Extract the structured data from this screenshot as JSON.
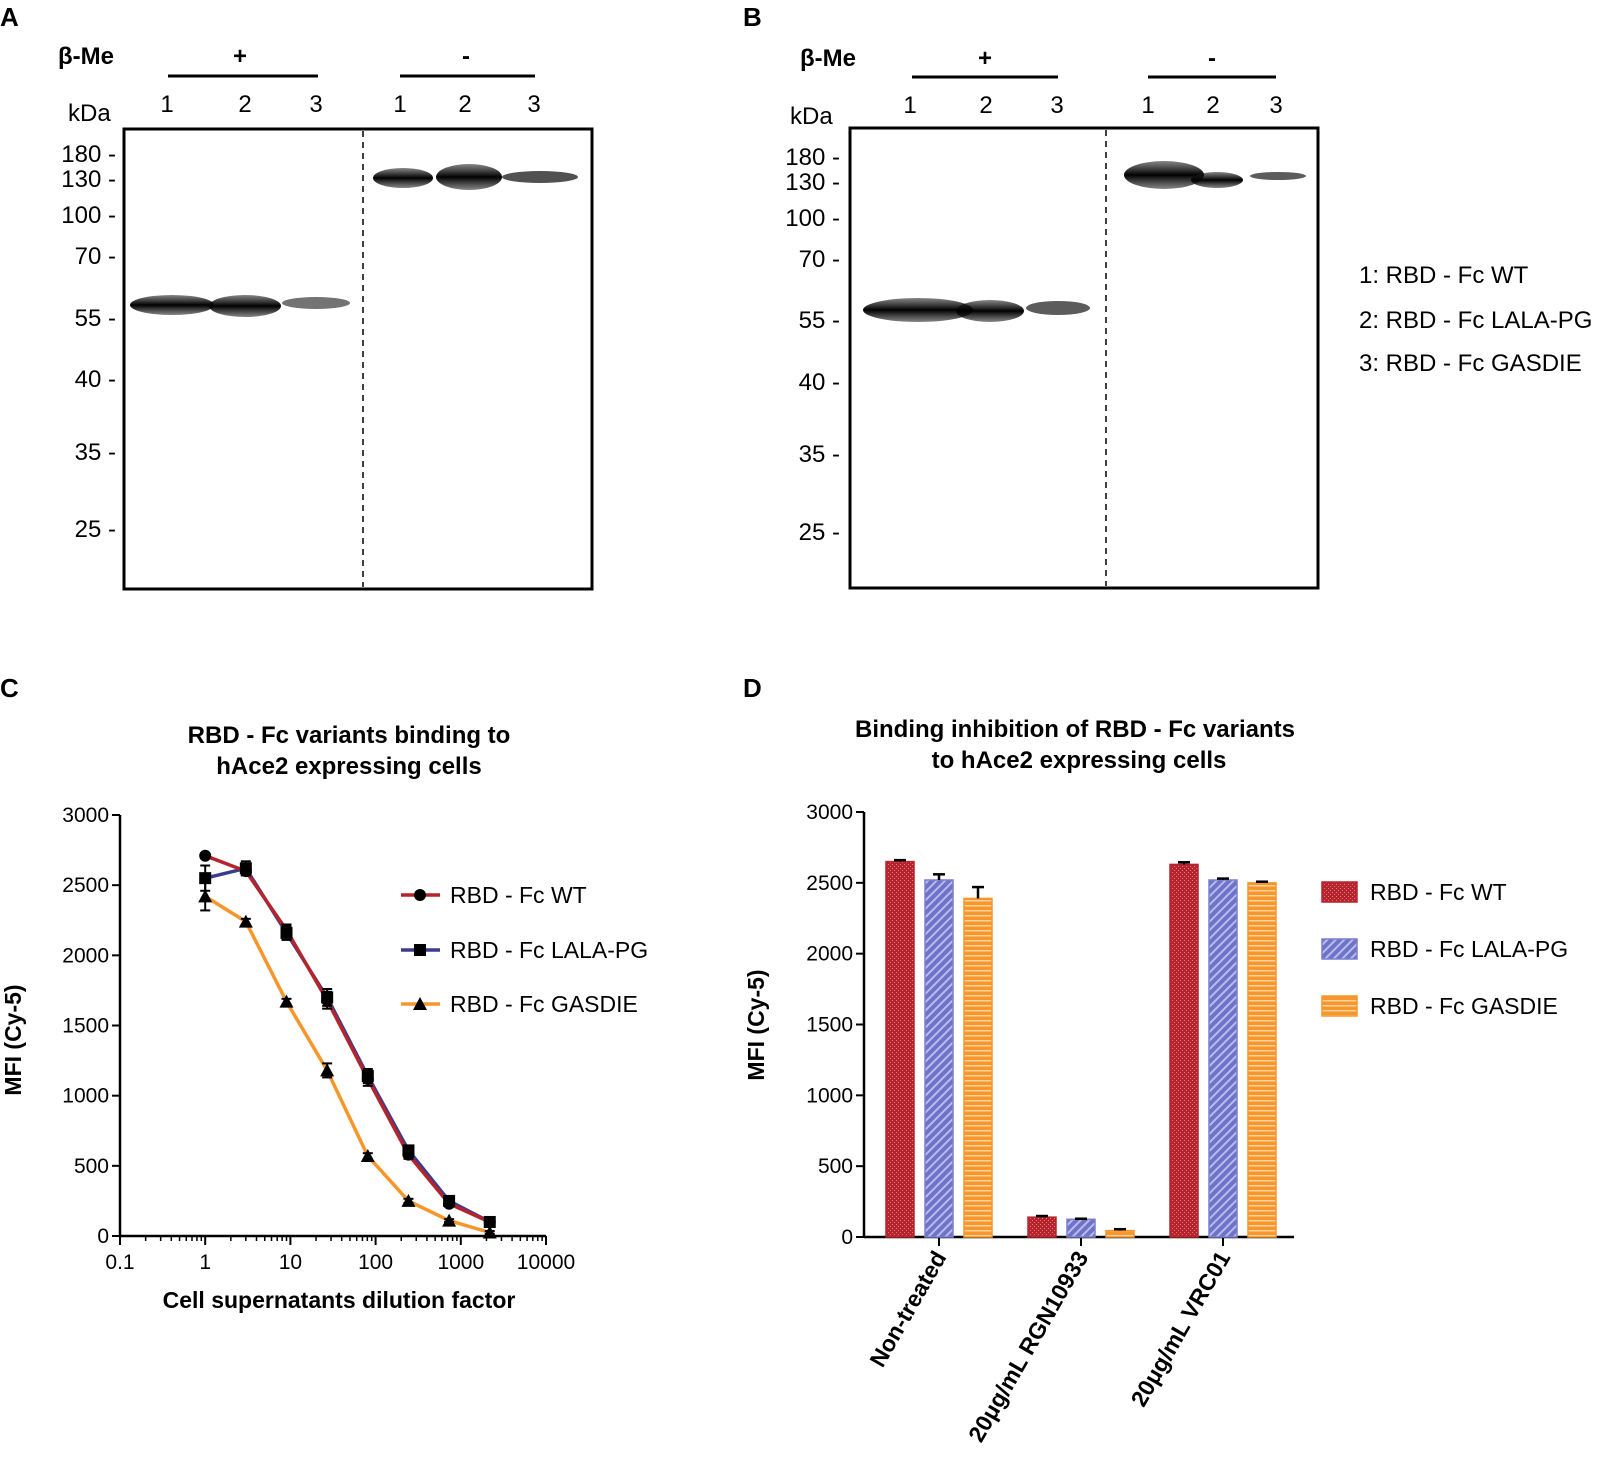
{
  "panel_a": {
    "letter": "A",
    "bme_label": "β-Me",
    "kda_label": "kDa",
    "plus_label": "+",
    "minus_label": "-",
    "lanes": [
      "1",
      "2",
      "3",
      "1",
      "2",
      "3"
    ],
    "markers": [
      "180 -",
      "130 -",
      "100 -",
      "70 -",
      "55 -",
      "40 -",
      "35 -",
      "25 -"
    ]
  },
  "panel_b": {
    "letter": "B",
    "bme_label": "β-Me",
    "kda_label": "kDa",
    "plus_label": "+",
    "minus_label": "-",
    "lanes": [
      "1",
      "2",
      "3",
      "1",
      "2",
      "3"
    ],
    "markers": [
      "180 -",
      "130 -",
      "100 -",
      "70 -",
      "55 -",
      "40 -",
      "35 -",
      "25 -"
    ],
    "legend": [
      "1: RBD - Fc WT",
      "2: RBD - Fc LALA-PG",
      "3: RBD - Fc GASDIE"
    ]
  },
  "colors": {
    "wt": "#b5242c",
    "lala": "#3b3d8c",
    "lala_bar": "#7b7fd0",
    "gasdie": "#f7962b"
  },
  "chart_data": [
    {
      "panel": "C",
      "type": "line",
      "title_line1": "RBD - Fc variants binding to",
      "title_line2": "hAce2 expressing cells",
      "xlabel": "Cell supernatants dilution factor",
      "ylabel": "MFI (Cy-5)",
      "xscale": "log",
      "xlim": [
        0.1,
        10000
      ],
      "ylim": [
        0,
        3000
      ],
      "xticks": [
        "0.1",
        "1",
        "10",
        "100",
        "1000",
        "10000"
      ],
      "yticks": [
        "0",
        "500",
        "1000",
        "1500",
        "2000",
        "2500",
        "3000"
      ],
      "x": [
        1,
        3,
        9,
        27,
        81,
        243,
        729,
        2187
      ],
      "series": [
        {
          "name": "RBD - Fc WT",
          "marker": "circle",
          "values": [
            2710,
            2600,
            2180,
            1680,
            1120,
            580,
            230,
            100
          ],
          "err": [
            0,
            30,
            40,
            60,
            50,
            30,
            20,
            15
          ]
        },
        {
          "name": "RBD - Fc LALA-PG",
          "marker": "square",
          "values": [
            2550,
            2620,
            2160,
            1700,
            1140,
            610,
            250,
            100
          ],
          "err": [
            90,
            50,
            50,
            60,
            50,
            30,
            20,
            15
          ]
        },
        {
          "name": "RBD - Fc GASDIE",
          "marker": "triangle",
          "values": [
            2420,
            2240,
            1670,
            1180,
            570,
            250,
            110,
            25
          ],
          "err": [
            100,
            20,
            20,
            50,
            20,
            15,
            10,
            10
          ]
        }
      ],
      "legend_placement": "right"
    },
    {
      "panel": "D",
      "type": "bar",
      "title_line1": "Binding inhibition of RBD - Fc variants",
      "title_line2": "to hAce2 expressing cells",
      "ylabel": "MFI (Cy-5)",
      "ylim": [
        0,
        3000
      ],
      "yticks": [
        "0",
        "500",
        "1000",
        "1500",
        "2000",
        "2500",
        "3000"
      ],
      "categories": [
        "Non-treated",
        "20μg/mL RGN10933",
        "20μg/mL VRC01"
      ],
      "series": [
        {
          "name": "RBD - Fc WT",
          "values": [
            2650,
            140,
            2630
          ],
          "err": [
            10,
            8,
            15
          ]
        },
        {
          "name": "RBD - Fc LALA-PG",
          "values": [
            2520,
            125,
            2520
          ],
          "err": [
            40,
            4,
            10
          ]
        },
        {
          "name": "RBD - Fc GASDIE",
          "values": [
            2390,
            45,
            2500
          ],
          "err": [
            80,
            10,
            8
          ]
        }
      ],
      "legend_placement": "right"
    }
  ]
}
